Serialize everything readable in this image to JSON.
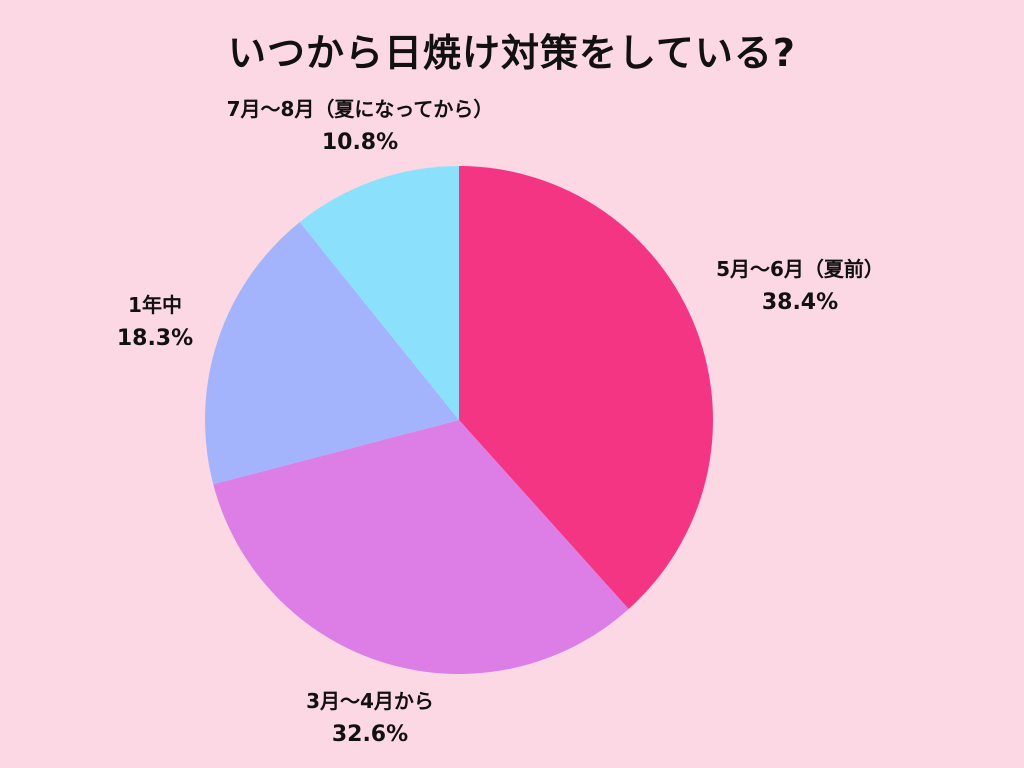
{
  "chart_data": {
    "type": "pie",
    "title": "いつから日焼け対策をしている?",
    "start_angle_deg": 0,
    "direction": "clockwise",
    "slices": [
      {
        "label": "5月～6月（夏前）",
        "value": 38.4,
        "value_label": "38.4%",
        "color": "#F43584"
      },
      {
        "label": "3月～4月から",
        "value": 32.6,
        "value_label": "32.6%",
        "color": "#DC7EE5"
      },
      {
        "label": "1年中",
        "value": 18.3,
        "value_label": "18.3%",
        "color": "#A3B4FD"
      },
      {
        "label": "7月～8月（夏になってから）",
        "value": 10.8,
        "value_label": "10.8%",
        "color": "#8BE1FC"
      }
    ]
  },
  "colors": {
    "background": "#FCD7E4",
    "text": "#111111"
  }
}
